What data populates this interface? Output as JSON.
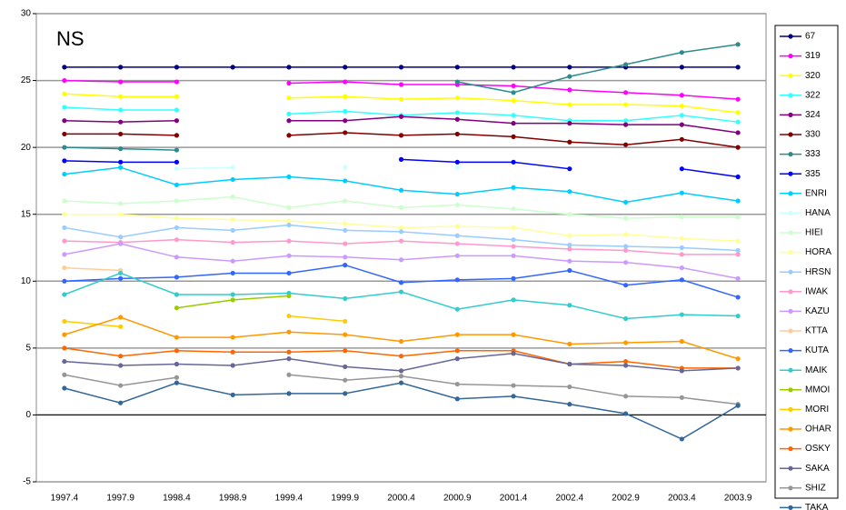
{
  "chart_data": {
    "type": "line",
    "title": "NS",
    "categories": [
      "1997.4",
      "1997.9",
      "1998.4",
      "1998.9",
      "1999.4",
      "1999.9",
      "2000.4",
      "2000.9",
      "2001.4",
      "2002.4",
      "2002.9",
      "2003.4",
      "2003.9"
    ],
    "ylim": [
      -5,
      30
    ],
    "yticks": [
      -5,
      0,
      5,
      10,
      15,
      20,
      25,
      30
    ],
    "grid": true,
    "legend": "right",
    "series": [
      {
        "name": "67",
        "color": "#000080",
        "values": [
          26,
          26,
          26,
          26,
          26,
          26,
          26,
          26,
          26,
          26,
          26,
          26,
          26
        ]
      },
      {
        "name": "319",
        "color": "#ff00ff",
        "values": [
          25,
          24.9,
          24.9,
          null,
          24.8,
          24.9,
          24.7,
          24.7,
          24.6,
          24.3,
          24.1,
          23.9,
          23.6
        ]
      },
      {
        "name": "320",
        "color": "#ffff00",
        "values": [
          24,
          23.8,
          23.8,
          null,
          23.7,
          23.8,
          23.6,
          23.7,
          23.5,
          23.2,
          23.2,
          23.1,
          22.6
        ]
      },
      {
        "name": "322",
        "color": "#33ffff",
        "values": [
          23,
          22.8,
          22.8,
          null,
          22.5,
          22.7,
          22.4,
          22.6,
          22.4,
          22,
          22,
          22.4,
          21.9
        ]
      },
      {
        "name": "324",
        "color": "#800080",
        "values": [
          22,
          21.9,
          22,
          null,
          22,
          22,
          22.3,
          22.1,
          21.8,
          21.8,
          21.7,
          21.7,
          21.1
        ]
      },
      {
        "name": "330",
        "color": "#800000",
        "values": [
          21,
          21,
          20.9,
          null,
          20.9,
          21.1,
          20.9,
          21,
          20.8,
          20.4,
          20.2,
          20.6,
          20
        ]
      },
      {
        "name": "333",
        "color": "#2e8b8b",
        "values": [
          20,
          19.9,
          19.8,
          null,
          null,
          null,
          null,
          24.9,
          24.1,
          25.3,
          26.2,
          27.1,
          27.7
        ]
      },
      {
        "name": "335",
        "color": "#0000ff",
        "values": [
          19,
          18.9,
          18.9,
          null,
          null,
          null,
          19.1,
          18.9,
          18.9,
          18.4,
          null,
          18.4,
          17.8
        ]
      },
      {
        "name": "ENRI",
        "color": "#00ccff",
        "values": [
          18,
          18.5,
          17.2,
          17.6,
          17.8,
          17.5,
          16.8,
          16.5,
          17,
          16.7,
          15.9,
          16.6,
          16
        ]
      },
      {
        "name": "HANA",
        "color": "#ccffff",
        "values": [
          null,
          null,
          18.4,
          18.5,
          null,
          18.5,
          null,
          18.5,
          null,
          null,
          null,
          null,
          null
        ]
      },
      {
        "name": "HIEI",
        "color": "#ccffcc",
        "values": [
          16,
          15.8,
          16,
          16.3,
          15.5,
          16,
          15.5,
          15.7,
          15.4,
          15,
          14.7,
          14.8,
          14.8
        ]
      },
      {
        "name": "HORA",
        "color": "#ffff99",
        "values": [
          15,
          15,
          14.7,
          14.6,
          14.5,
          14.3,
          14,
          14.1,
          14,
          13.4,
          13.5,
          13.2,
          13
        ]
      },
      {
        "name": "HRSN",
        "color": "#99ccff",
        "values": [
          14,
          13.3,
          14,
          13.8,
          14.2,
          13.8,
          13.7,
          13.4,
          13.1,
          12.7,
          12.6,
          12.5,
          12.3
        ]
      },
      {
        "name": "IWAK",
        "color": "#ff99cc",
        "values": [
          13,
          12.9,
          13.1,
          12.9,
          13,
          12.8,
          13,
          12.8,
          12.6,
          12.4,
          12.3,
          12,
          12
        ]
      },
      {
        "name": "KAZU",
        "color": "#cc99ff",
        "values": [
          12,
          12.8,
          11.8,
          11.5,
          11.9,
          11.8,
          11.6,
          11.9,
          11.9,
          11.5,
          11.4,
          11,
          10.2
        ]
      },
      {
        "name": "KTTA",
        "color": "#ffcc99",
        "values": [
          11,
          10.8,
          null,
          null,
          null,
          11.2,
          null,
          null,
          null,
          null,
          null,
          null,
          null
        ]
      },
      {
        "name": "KUTA",
        "color": "#3366ff",
        "values": [
          10,
          10.2,
          10.3,
          10.6,
          10.6,
          11.2,
          9.9,
          10.1,
          10.2,
          10.8,
          9.7,
          10.1,
          8.8
        ]
      },
      {
        "name": "MAIK",
        "color": "#33cccc",
        "values": [
          9,
          10.6,
          9,
          9,
          9.1,
          8.7,
          9.2,
          7.9,
          8.6,
          8.2,
          7.2,
          7.5,
          7.4
        ]
      },
      {
        "name": "MMOI",
        "color": "#99cc00",
        "values": [
          null,
          null,
          8,
          8.6,
          8.9,
          null,
          null,
          null,
          null,
          null,
          null,
          null,
          null
        ]
      },
      {
        "name": "MORI",
        "color": "#ffcc00",
        "values": [
          7,
          6.6,
          null,
          null,
          7.4,
          7,
          null,
          null,
          null,
          null,
          null,
          null,
          null
        ]
      },
      {
        "name": "OHAR",
        "color": "#ff9900",
        "values": [
          6,
          7.3,
          5.8,
          5.8,
          6.2,
          6,
          5.5,
          6,
          6,
          5.3,
          5.4,
          5.5,
          4.2
        ]
      },
      {
        "name": "OSKY",
        "color": "#ff6600",
        "values": [
          5,
          4.4,
          4.8,
          4.7,
          4.7,
          4.8,
          4.4,
          4.8,
          4.8,
          3.8,
          4,
          3.5,
          3.5
        ]
      },
      {
        "name": "SAKA",
        "color": "#666699",
        "values": [
          4,
          3.7,
          3.8,
          3.7,
          4.2,
          3.6,
          3.3,
          4.2,
          4.6,
          3.8,
          3.7,
          3.3,
          3.5
        ]
      },
      {
        "name": "SHIZ",
        "color": "#969696",
        "values": [
          3,
          2.2,
          2.8,
          null,
          3,
          2.6,
          2.9,
          2.3,
          2.2,
          2.1,
          1.4,
          1.3,
          0.8
        ]
      },
      {
        "name": "TAKA",
        "color": "#336699",
        "values": [
          2,
          0.9,
          2.4,
          1.5,
          1.6,
          1.6,
          2.4,
          1.2,
          1.4,
          0.8,
          0.1,
          -1.8,
          0.7
        ]
      }
    ]
  }
}
